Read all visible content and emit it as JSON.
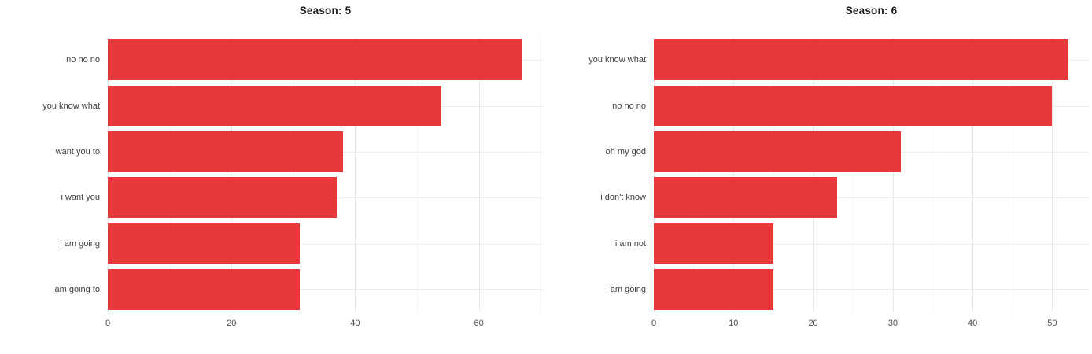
{
  "colors": {
    "bar": "#e8383c",
    "grid_major": "#e9e9e9",
    "grid_minor": "#f5f5f5",
    "axis_text": "#4d4d4d",
    "category_text": "#3d3d3d",
    "title_text": "#1c1c1c",
    "background": "#ffffff"
  },
  "chart_data": [
    {
      "type": "bar",
      "orientation": "horizontal",
      "title": "Season: 5",
      "categories": [
        "no no no",
        "you know what",
        "want you to",
        "i want you",
        "i am going",
        "am going to"
      ],
      "values": [
        67,
        54,
        38,
        37,
        31,
        31
      ],
      "xlabel": "",
      "ylabel": "",
      "xticks": [
        0,
        20,
        40,
        60
      ],
      "xminor": [
        10,
        30,
        50,
        70
      ],
      "xlim": [
        0,
        70.35
      ],
      "grid": true,
      "legend": false
    },
    {
      "type": "bar",
      "orientation": "horizontal",
      "title": "Season: 6",
      "categories": [
        "you know what",
        "no no no",
        "oh my god",
        "i don't know",
        "i am not",
        "i am going"
      ],
      "values": [
        52,
        50,
        31,
        23,
        15,
        15
      ],
      "xlabel": "",
      "ylabel": "",
      "xticks": [
        0,
        10,
        20,
        30,
        40,
        50
      ],
      "xminor": [
        5,
        15,
        25,
        35,
        45
      ],
      "xlim": [
        0,
        54.6
      ],
      "grid": true,
      "legend": false
    }
  ]
}
